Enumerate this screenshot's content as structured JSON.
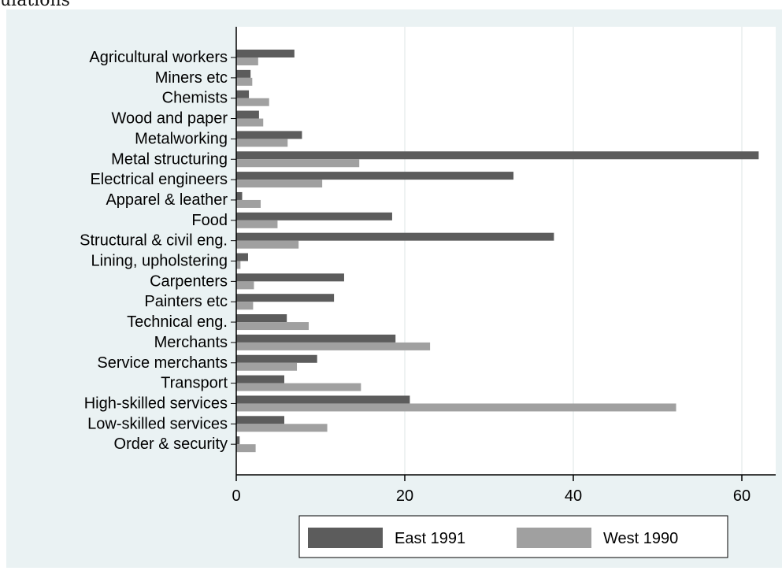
{
  "caption_fragment": "ulations",
  "colors": {
    "background_outer": "#eaf2f3",
    "plot_background": "#ffffff",
    "grid": "#e8eeee",
    "east": "#5c5c5c",
    "west": "#a0a0a0",
    "axis": "#000000"
  },
  "chart_data": {
    "type": "bar",
    "orientation": "horizontal",
    "categories": [
      "Agricultural workers",
      "Miners etc",
      "Chemists",
      "Wood and paper",
      "Metalworking",
      "Metal structuring",
      "Electrical engineers",
      "Apparel & leather",
      "Food",
      "Structural & civil eng.",
      "Lining, upholstering",
      "Carpenters",
      "Painters etc",
      "Technical eng.",
      "Merchants",
      "Service merchants",
      "Transport",
      "High-skilled services",
      "Low-skilled services",
      "Order & security"
    ],
    "series": [
      {
        "name": "East 1991",
        "values": [
          6.9,
          1.7,
          1.5,
          2.7,
          7.8,
          62.0,
          32.9,
          0.7,
          18.5,
          37.7,
          1.4,
          12.8,
          11.6,
          6.0,
          18.9,
          9.6,
          5.7,
          20.6,
          5.7,
          0.4
        ]
      },
      {
        "name": "West 1990",
        "values": [
          2.6,
          1.9,
          3.9,
          3.2,
          6.1,
          14.6,
          10.2,
          2.9,
          4.9,
          7.4,
          0.5,
          2.1,
          2.0,
          8.6,
          23.0,
          7.2,
          14.8,
          52.2,
          10.8,
          2.3
        ]
      }
    ],
    "xlim": [
      0,
      64
    ],
    "xticks": [
      "0",
      "20",
      "40",
      "60"
    ],
    "xtick_values": [
      0,
      20,
      40,
      60
    ],
    "grid": true,
    "legend_position": "bottom",
    "title": "",
    "xlabel": "",
    "ylabel": ""
  }
}
